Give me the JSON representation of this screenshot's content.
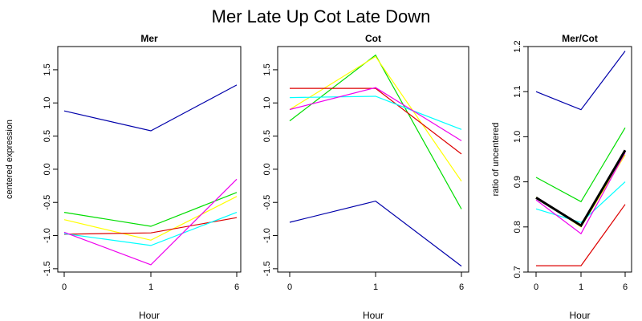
{
  "title": "Mer Late Up Cot Late Down",
  "colors": {
    "s1": "#0000aa",
    "s2": "#00dd00",
    "s3": "#ffff00",
    "s4": "#dd0000",
    "s5": "#00ffff",
    "s6": "#ee00ee",
    "mean": "#000000"
  },
  "chart_data": [
    {
      "type": "line",
      "title": "Mer",
      "xlabel": "Hour",
      "ylabel": "centered expression",
      "categories": [
        "0",
        "1",
        "6"
      ],
      "ylim": [
        -1.55,
        1.85
      ],
      "yticks": [
        "-1.5",
        "-1.0",
        "-0.5",
        "0.0",
        "0.5",
        "1.0",
        "1.5"
      ],
      "series": [
        {
          "color_key": "s1",
          "values": [
            0.88,
            0.58,
            1.27
          ]
        },
        {
          "color_key": "s2",
          "values": [
            -0.65,
            -0.86,
            -0.35
          ]
        },
        {
          "color_key": "s3",
          "values": [
            -0.76,
            -1.07,
            -0.41
          ]
        },
        {
          "color_key": "s4",
          "values": [
            -0.98,
            -0.96,
            -0.73
          ]
        },
        {
          "color_key": "s5",
          "values": [
            -0.97,
            -1.15,
            -0.65
          ]
        },
        {
          "color_key": "s6",
          "values": [
            -0.95,
            -1.44,
            -0.15
          ]
        }
      ]
    },
    {
      "type": "line",
      "title": "Cot",
      "xlabel": "Hour",
      "ylabel": "",
      "categories": [
        "0",
        "1",
        "6"
      ],
      "ylim": [
        -1.55,
        1.85
      ],
      "yticks": [
        "-1.5",
        "-1.0",
        "-0.5",
        "0.0",
        "0.5",
        "1.0",
        "1.5"
      ],
      "series": [
        {
          "color_key": "s1",
          "values": [
            -0.8,
            -0.48,
            -1.46
          ]
        },
        {
          "color_key": "s2",
          "values": [
            0.73,
            1.72,
            -0.6
          ]
        },
        {
          "color_key": "s3",
          "values": [
            0.9,
            1.7,
            -0.18
          ]
        },
        {
          "color_key": "s4",
          "values": [
            1.22,
            1.22,
            0.23
          ]
        },
        {
          "color_key": "s5",
          "values": [
            1.08,
            1.1,
            0.6
          ]
        },
        {
          "color_key": "s6",
          "values": [
            0.9,
            1.23,
            0.43
          ]
        }
      ]
    },
    {
      "type": "line",
      "title": "Mer/Cot",
      "xlabel": "Hour",
      "ylabel": "ratio of uncentered",
      "categories": [
        "0",
        "1",
        "6"
      ],
      "ylim": [
        0.7,
        1.2
      ],
      "yticks": [
        "0.7",
        "0.8",
        "0.9",
        "1.0",
        "1.1",
        "1.2"
      ],
      "series": [
        {
          "color_key": "s1",
          "values": [
            1.1,
            1.06,
            1.19
          ]
        },
        {
          "color_key": "s2",
          "values": [
            0.91,
            0.856,
            1.02
          ]
        },
        {
          "color_key": "s3",
          "values": [
            0.866,
            0.8,
            0.96
          ]
        },
        {
          "color_key": "s4",
          "values": [
            0.714,
            0.714,
            0.85
          ]
        },
        {
          "color_key": "s5",
          "values": [
            0.84,
            0.81,
            0.9
          ]
        },
        {
          "color_key": "s6",
          "values": [
            0.86,
            0.785,
            0.965
          ]
        },
        {
          "color_key": "mean",
          "values": [
            0.865,
            0.803,
            0.97
          ],
          "bold": true
        }
      ]
    }
  ]
}
